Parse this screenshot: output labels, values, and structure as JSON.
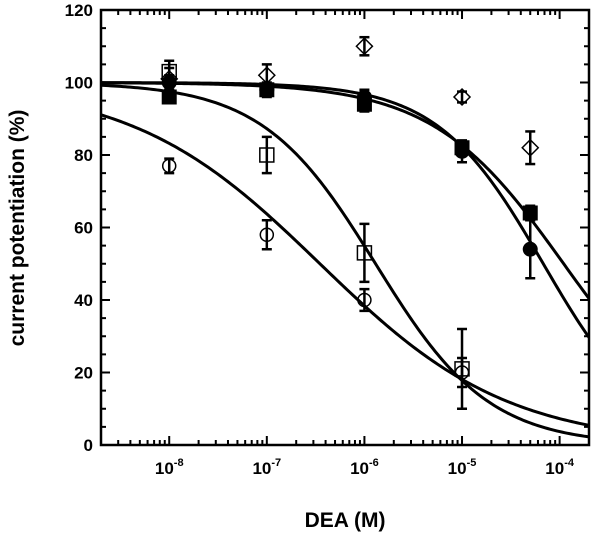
{
  "chart_data": {
    "type": "scatter",
    "title": "",
    "xlabel": "DEA (M)",
    "ylabel": "current potentiation (%)",
    "xscale": "log",
    "xlim": [
      2e-09,
      0.0002
    ],
    "ylim": [
      0,
      120
    ],
    "x_ticks": [
      {
        "value": 1e-08,
        "base": "10",
        "exp": "-8"
      },
      {
        "value": 1e-07,
        "base": "10",
        "exp": "-7"
      },
      {
        "value": 1e-06,
        "base": "10",
        "exp": "-6"
      },
      {
        "value": 1e-05,
        "base": "10",
        "exp": "-5"
      },
      {
        "value": 0.0001,
        "base": "10",
        "exp": "-4"
      }
    ],
    "y_ticks": [
      "0",
      "20",
      "40",
      "60",
      "80",
      "100",
      "120"
    ],
    "grid": false,
    "legend": "none",
    "series": [
      {
        "marker": "filled-circle",
        "x": [
          1e-08,
          1e-07,
          1e-06,
          1e-05,
          5e-05
        ],
        "y": [
          100,
          98,
          96,
          81,
          54
        ],
        "err": [
          2,
          2,
          2,
          3,
          8
        ],
        "fit": {
          "top": 100,
          "bottom": 0,
          "ic50": 6.8e-05,
          "hill": 0.8
        }
      },
      {
        "marker": "filled-square",
        "x": [
          1e-08,
          1e-07,
          1e-06,
          1e-05,
          5e-05
        ],
        "y": [
          96,
          98,
          94,
          82,
          64
        ],
        "err": [
          1.5,
          1.5,
          2,
          2,
          2
        ],
        "fit": {
          "top": 100,
          "bottom": 0,
          "ic50": 0.00011,
          "hill": 0.65
        }
      },
      {
        "marker": "open-square",
        "x": [
          1e-08,
          1e-07,
          1e-06,
          1e-05
        ],
        "y": [
          103,
          80,
          53,
          21
        ],
        "err": [
          3,
          5,
          8,
          11
        ],
        "fit": {
          "top": 100,
          "bottom": 0,
          "ic50": 1.3e-06,
          "hill": 0.75
        }
      },
      {
        "marker": "open-circle",
        "x": [
          1e-08,
          1e-07,
          1e-06,
          1e-05
        ],
        "y": [
          77,
          58,
          40,
          20
        ],
        "err": [
          2,
          4,
          3,
          4
        ],
        "fit": {
          "top": 100,
          "bottom": 0,
          "ic50": 3.5e-07,
          "hill": 0.45
        }
      },
      {
        "marker": "open-diamond",
        "x": [
          1e-08,
          1e-07,
          1e-06,
          1e-05,
          5e-05
        ],
        "y": [
          101,
          102,
          110,
          96,
          82
        ],
        "err": [
          3,
          3,
          2.5,
          1.5,
          4.5
        ]
      }
    ]
  }
}
